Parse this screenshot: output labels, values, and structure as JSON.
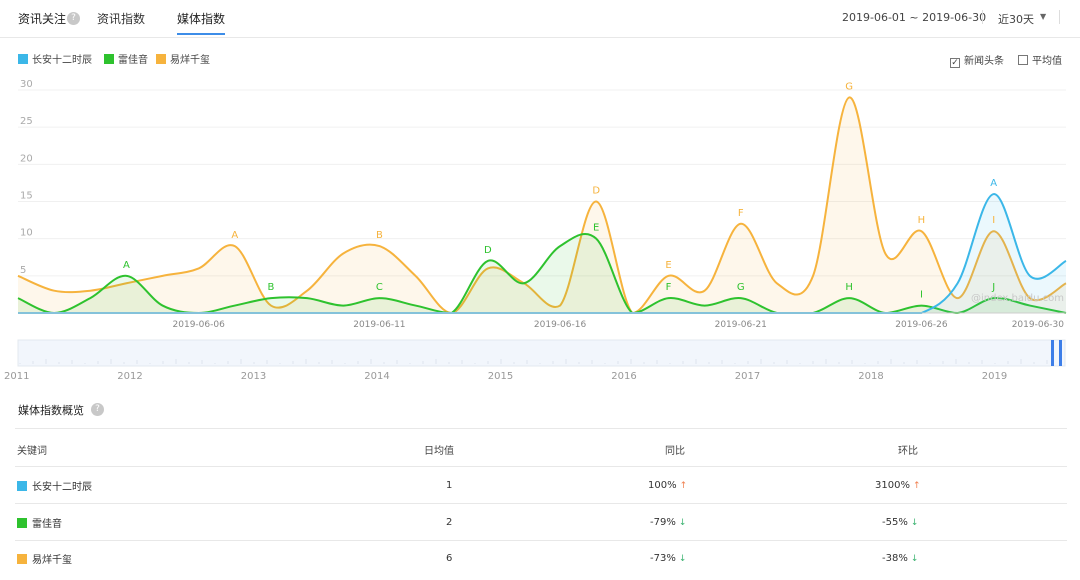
{
  "header": {
    "section_title": "资讯关注",
    "help_mark": "?",
    "tabs": [
      {
        "label": "资讯指数"
      },
      {
        "label": "媒体指数"
      }
    ],
    "date_range": "2019-06-01 ~ 2019-06-30",
    "period": "近30天"
  },
  "legend": [
    {
      "label": "长安十二时辰",
      "color": "#3bb7e8"
    },
    {
      "label": "雷佳音",
      "color": "#2ec22e"
    },
    {
      "label": "易烊千玺",
      "color": "#f6b33d"
    }
  ],
  "options": {
    "headline_check": "✓",
    "headline": "新闻头条",
    "average": "平均值"
  },
  "watermark": "@index.baidu.com",
  "chart_data": {
    "type": "area",
    "ylim": [
      0,
      30
    ],
    "yticks": [
      5,
      10,
      15,
      20,
      25,
      30
    ],
    "x": [
      "2019-06-01",
      "2019-06-02",
      "2019-06-03",
      "2019-06-04",
      "2019-06-05",
      "2019-06-06",
      "2019-06-07",
      "2019-06-08",
      "2019-06-09",
      "2019-06-10",
      "2019-06-11",
      "2019-06-12",
      "2019-06-13",
      "2019-06-14",
      "2019-06-15",
      "2019-06-16",
      "2019-06-17",
      "2019-06-18",
      "2019-06-19",
      "2019-06-20",
      "2019-06-21",
      "2019-06-22",
      "2019-06-23",
      "2019-06-24",
      "2019-06-25",
      "2019-06-26",
      "2019-06-27",
      "2019-06-28",
      "2019-06-29",
      "2019-06-30"
    ],
    "xtick_labels": [
      "2019-06-06",
      "2019-06-11",
      "2019-06-16",
      "2019-06-21",
      "2019-06-26",
      "2019-06-30"
    ],
    "series": [
      {
        "name": "长安十二时辰",
        "color": "#3bb7e8",
        "values": [
          0,
          0,
          0,
          0,
          0,
          0,
          0,
          0,
          0,
          0,
          0,
          0,
          0,
          0,
          0,
          0,
          0,
          0,
          0,
          0,
          0,
          0,
          0,
          0,
          0,
          0,
          4,
          16,
          5,
          7
        ]
      },
      {
        "name": "雷佳音",
        "color": "#2ec22e",
        "values": [
          2,
          0,
          2,
          5,
          1,
          0,
          1,
          2,
          2,
          1,
          2,
          1,
          0,
          7,
          4,
          9,
          10,
          0,
          2,
          1,
          2,
          0,
          0,
          2,
          0,
          1,
          0,
          2,
          1,
          0
        ]
      },
      {
        "name": "易烊千玺",
        "color": "#f6b33d",
        "values": [
          5,
          3,
          3,
          4,
          5,
          6,
          9,
          1,
          3,
          8,
          9,
          5,
          0,
          6,
          4,
          1,
          15,
          0,
          5,
          3,
          12,
          4,
          5,
          29,
          8,
          11,
          2,
          11,
          2,
          4
        ]
      }
    ],
    "annotations": [
      {
        "label": "A",
        "series": "雷佳音",
        "x": "2019-06-04"
      },
      {
        "label": "B",
        "series": "雷佳音",
        "x": "2019-06-08"
      },
      {
        "label": "C",
        "series": "雷佳音",
        "x": "2019-06-11"
      },
      {
        "label": "D",
        "series": "雷佳音",
        "x": "2019-06-14"
      },
      {
        "label": "E",
        "series": "雷佳音",
        "x": "2019-06-17"
      },
      {
        "label": "F",
        "series": "雷佳音",
        "x": "2019-06-19"
      },
      {
        "label": "G",
        "series": "雷佳音",
        "x": "2019-06-21"
      },
      {
        "label": "H",
        "series": "雷佳音",
        "x": "2019-06-24"
      },
      {
        "label": "I",
        "series": "雷佳音",
        "x": "2019-06-26"
      },
      {
        "label": "J",
        "series": "雷佳音",
        "x": "2019-06-28"
      },
      {
        "label": "A",
        "series": "易烊千玺",
        "x": "2019-06-07"
      },
      {
        "label": "B",
        "series": "易烊千玺",
        "x": "2019-06-11"
      },
      {
        "label": "D",
        "series": "易烊千玺",
        "x": "2019-06-17"
      },
      {
        "label": "E",
        "series": "易烊千玺",
        "x": "2019-06-19"
      },
      {
        "label": "F",
        "series": "易烊千玺",
        "x": "2019-06-21"
      },
      {
        "label": "G",
        "series": "易烊千玺",
        "x": "2019-06-24"
      },
      {
        "label": "H",
        "series": "易烊千玺",
        "x": "2019-06-26"
      },
      {
        "label": "I",
        "series": "易烊千玺",
        "x": "2019-06-28"
      },
      {
        "label": "A",
        "series": "长安十二时辰",
        "x": "2019-06-28"
      }
    ],
    "navigator": {
      "year_labels": [
        "2011",
        "2012",
        "2013",
        "2014",
        "2015",
        "2016",
        "2017",
        "2018",
        "2019"
      ],
      "selected_range": "2019-06-01 ~ 2019-06-30"
    }
  },
  "overview": {
    "title": "媒体指数概览",
    "columns": [
      "关键词",
      "日均值",
      "同比",
      "环比"
    ],
    "rows": [
      {
        "keyword": "长安十二时辰",
        "color": "#3bb7e8",
        "daily_avg": "1",
        "yoy": "100%",
        "yoy_arrow": "↑",
        "yoy_color": "#f08050",
        "mom": "3100%",
        "mom_arrow": "↑",
        "mom_color": "#f08050"
      },
      {
        "keyword": "雷佳音",
        "color": "#2ec22e",
        "daily_avg": "2",
        "yoy": "-79%",
        "yoy_arrow": "↓",
        "yoy_color": "#3cb371",
        "mom": "-55%",
        "mom_arrow": "↓",
        "mom_color": "#3cb371"
      },
      {
        "keyword": "易烊千玺",
        "color": "#f6b33d",
        "daily_avg": "6",
        "yoy": "-73%",
        "yoy_arrow": "↓",
        "yoy_color": "#3cb371",
        "mom": "-38%",
        "mom_arrow": "↓",
        "mom_color": "#3cb371"
      }
    ]
  }
}
